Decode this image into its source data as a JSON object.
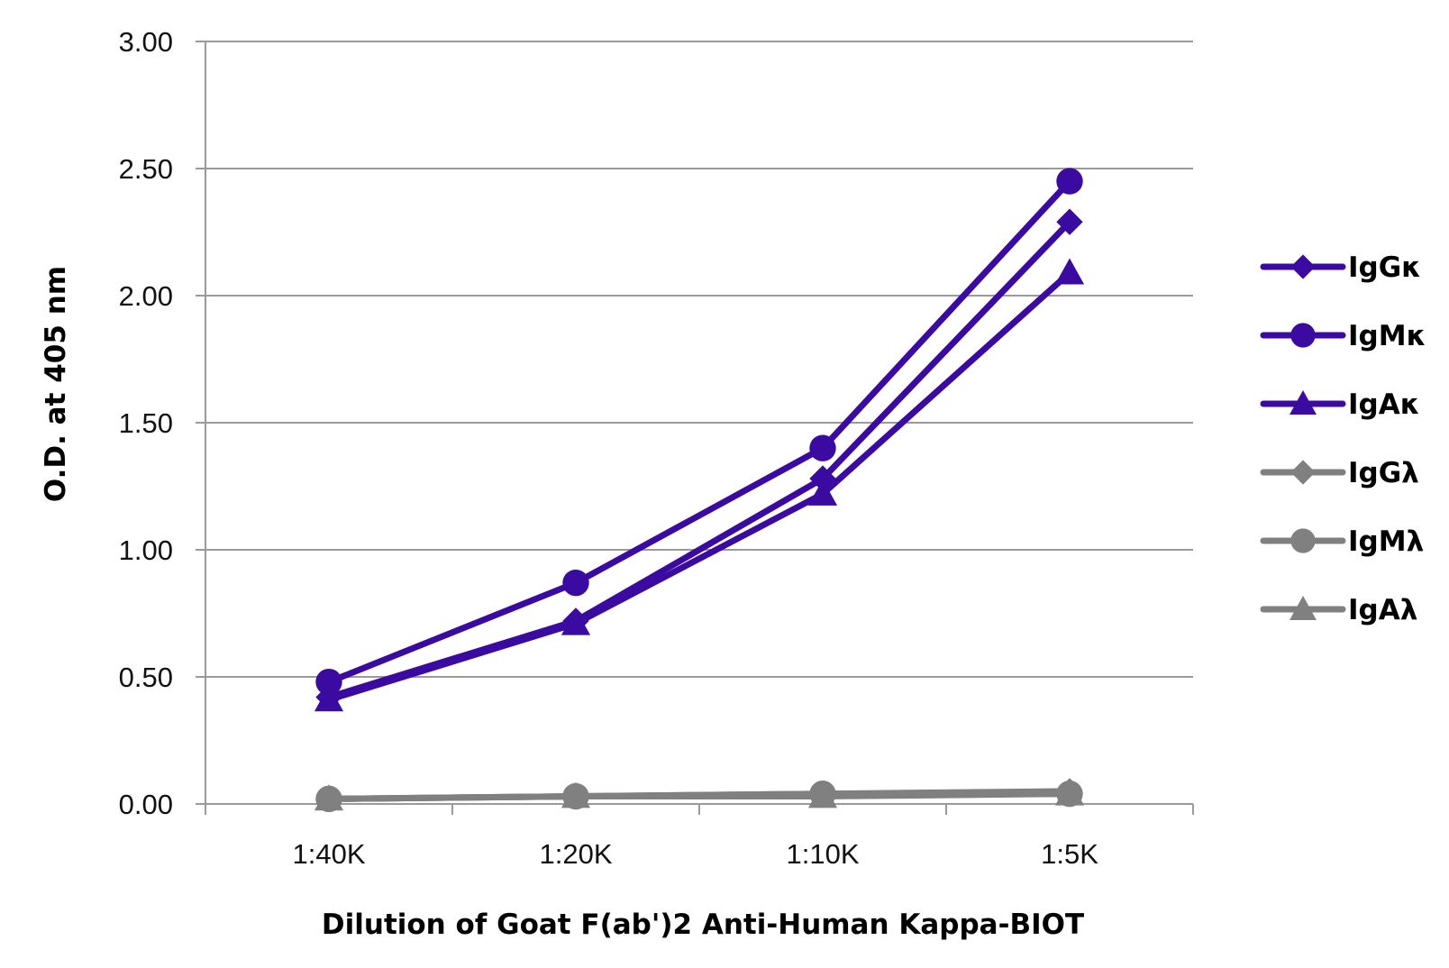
{
  "chart_data": {
    "type": "line",
    "title": "",
    "xlabel": "Dilution of Goat F(ab')2 Anti-Human Kappa-BIOT",
    "ylabel": "O.D. at 405 nm",
    "categories": [
      "1:40K",
      "1:20K",
      "1:10K",
      "1:5K"
    ],
    "ylim": [
      0,
      3
    ],
    "yticks": [
      "0.00",
      "0.50",
      "1.00",
      "1.50",
      "2.00",
      "2.50",
      "3.00"
    ],
    "ytick_values": [
      0,
      0.5,
      1,
      1.5,
      2,
      2.5,
      3
    ],
    "grid": true,
    "legend_position": "right",
    "series": [
      {
        "name": "IgGκ",
        "values": [
          0.42,
          0.72,
          1.28,
          2.29
        ],
        "color": "#3b0aa0",
        "marker": "diamond"
      },
      {
        "name": "IgMκ",
        "values": [
          0.48,
          0.87,
          1.4,
          2.45
        ],
        "color": "#3b0aa0",
        "marker": "circle"
      },
      {
        "name": "IgAκ",
        "values": [
          0.41,
          0.71,
          1.22,
          2.09
        ],
        "color": "#3b0aa0",
        "marker": "triangle"
      },
      {
        "name": "IgGλ",
        "values": [
          0.02,
          0.03,
          0.04,
          0.05
        ],
        "color": "#808080",
        "marker": "diamond"
      },
      {
        "name": "IgMλ",
        "values": [
          0.02,
          0.03,
          0.04,
          0.04
        ],
        "color": "#808080",
        "marker": "circle"
      },
      {
        "name": "IgAλ",
        "values": [
          0.02,
          0.03,
          0.03,
          0.04
        ],
        "color": "#808080",
        "marker": "triangle"
      }
    ]
  }
}
